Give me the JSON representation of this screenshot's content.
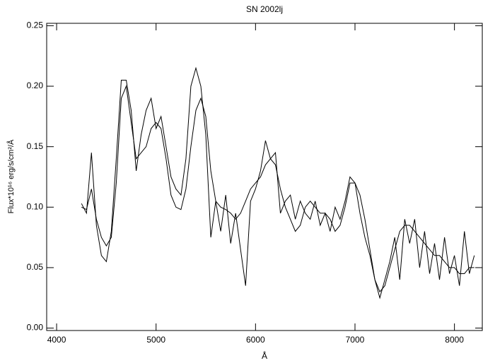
{
  "chart_data": {
    "type": "line",
    "title": "SN 2002lj",
    "x_label": "Å",
    "y_label": "Flux*10¹⁶ erg/s/cm²/Å",
    "x": [
      4250,
      4300,
      4350,
      4400,
      4450,
      4500,
      4550,
      4600,
      4650,
      4700,
      4750,
      4800,
      4850,
      4900,
      4950,
      5000,
      5050,
      5100,
      5150,
      5200,
      5250,
      5300,
      5350,
      5400,
      5450,
      5500,
      5550,
      5600,
      5650,
      5700,
      5750,
      5800,
      5850,
      5900,
      5950,
      6000,
      6050,
      6100,
      6150,
      6200,
      6250,
      6300,
      6350,
      6400,
      6450,
      6500,
      6550,
      6600,
      6650,
      6700,
      6750,
      6800,
      6850,
      6900,
      6950,
      7000,
      7050,
      7100,
      7150,
      7200,
      7250,
      7300,
      7350,
      7400,
      7450,
      7500,
      7550,
      7600,
      7650,
      7700,
      7750,
      7800,
      7850,
      7900,
      7950,
      8000,
      8050,
      8100,
      8150,
      8200
    ],
    "series": [
      {
        "color": "#000000",
        "values": [
          0.103,
          0.095,
          0.145,
          0.085,
          0.06,
          0.055,
          0.08,
          0.14,
          0.205,
          0.205,
          0.18,
          0.13,
          0.16,
          0.18,
          0.19,
          0.165,
          0.175,
          0.15,
          0.125,
          0.115,
          0.11,
          0.14,
          0.2,
          0.215,
          0.2,
          0.16,
          0.075,
          0.105,
          0.08,
          0.11,
          0.07,
          0.095,
          0.065,
          0.035,
          0.105,
          0.115,
          0.13,
          0.155,
          0.14,
          0.145,
          0.095,
          0.105,
          0.11,
          0.09,
          0.105,
          0.095,
          0.09,
          0.105,
          0.085,
          0.095,
          0.08,
          0.1,
          0.09,
          0.105,
          0.125,
          0.12,
          0.095,
          0.075,
          0.06,
          0.04,
          0.025,
          0.04,
          0.055,
          0.075,
          0.04,
          0.09,
          0.07,
          0.09,
          0.05,
          0.08,
          0.045,
          0.07,
          0.04,
          0.075,
          0.045,
          0.06,
          0.035,
          0.08,
          0.045,
          0.06
        ]
      },
      {
        "color": "#000000",
        "values": [
          0.1,
          0.098,
          0.115,
          0.09,
          0.075,
          0.068,
          0.075,
          0.12,
          0.19,
          0.2,
          0.17,
          0.14,
          0.145,
          0.15,
          0.165,
          0.17,
          0.165,
          0.14,
          0.11,
          0.1,
          0.098,
          0.115,
          0.15,
          0.18,
          0.19,
          0.175,
          0.13,
          0.105,
          0.1,
          0.098,
          0.095,
          0.09,
          0.095,
          0.105,
          0.115,
          0.12,
          0.125,
          0.135,
          0.14,
          0.135,
          0.115,
          0.1,
          0.09,
          0.08,
          0.085,
          0.1,
          0.105,
          0.1,
          0.095,
          0.095,
          0.09,
          0.08,
          0.085,
          0.1,
          0.12,
          0.12,
          0.11,
          0.09,
          0.065,
          0.04,
          0.03,
          0.035,
          0.05,
          0.065,
          0.08,
          0.085,
          0.085,
          0.08,
          0.075,
          0.07,
          0.065,
          0.06,
          0.06,
          0.055,
          0.05,
          0.05,
          0.045,
          0.045,
          0.05,
          0.05
        ]
      }
    ],
    "xlim": [
      3900,
      8280
    ],
    "ylim": [
      -0.002,
      0.252
    ],
    "xticks": [
      4000,
      5000,
      6000,
      7000,
      8000
    ],
    "yticks": [
      {
        "value": 0,
        "label": "0.00"
      },
      0.05,
      {
        "value": 0.1,
        "label": "0.10"
      },
      0.15,
      {
        "value": 0.2,
        "label": "0.20"
      },
      0.25
    ]
  }
}
